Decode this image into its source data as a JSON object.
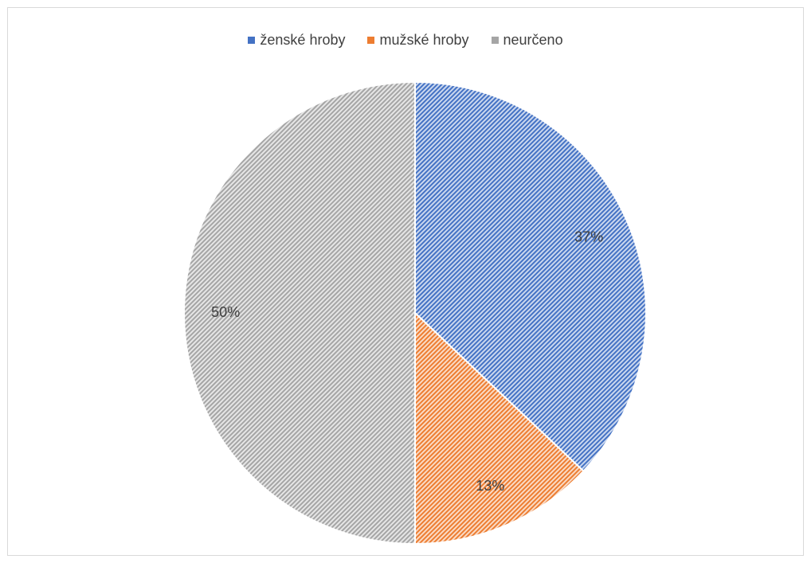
{
  "chart_data": {
    "type": "pie",
    "title": "",
    "categories": [
      "ženské hroby",
      "mužské hroby",
      "neurčeno"
    ],
    "values": [
      37,
      13,
      50
    ],
    "labels": [
      "37%",
      "13%",
      "50%"
    ],
    "colors": [
      "#4472c4",
      "#ed7d31",
      "#a5a5a5"
    ],
    "pattern": "diagonal-stripes",
    "legend": "top",
    "start_angle": "12 o'clock, clockwise"
  }
}
